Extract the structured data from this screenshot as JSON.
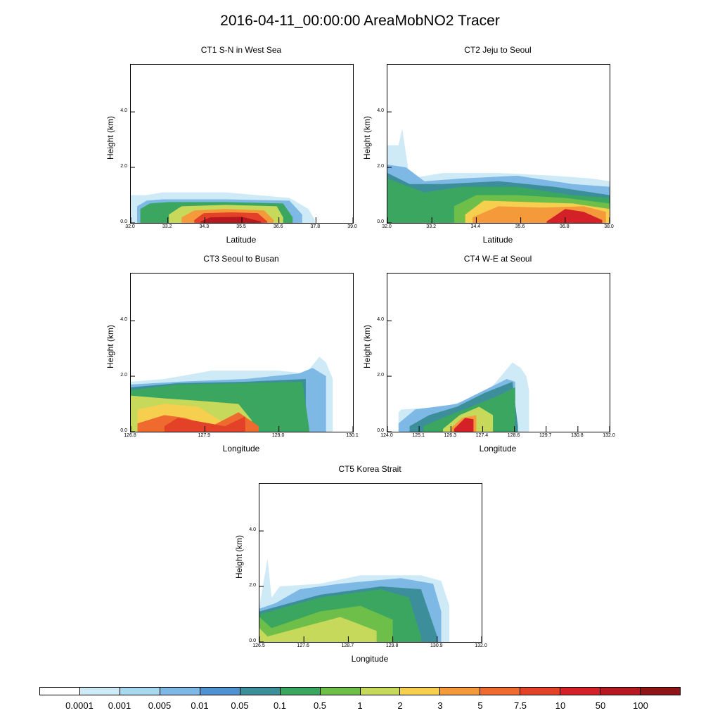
{
  "figure_title": "2016-04-11_00:00:00 AreaMobNO2 Tracer",
  "colorbar": {
    "colors": [
      "#ffffff",
      "#cfeaf7",
      "#a6d8f0",
      "#7db9e4",
      "#4f94d0",
      "#3c8f9a",
      "#3aa660",
      "#6dbf4a",
      "#c6d95a",
      "#f7cf4e",
      "#f59a3a",
      "#ef6a2e",
      "#e34128",
      "#d42027",
      "#b5181e",
      "#8f1416"
    ],
    "labels": [
      "0.0001",
      "0.001",
      "0.005",
      "0.01",
      "0.05",
      "0.1",
      "0.5",
      "1",
      "2",
      "3",
      "5",
      "7.5",
      "10",
      "50",
      "100"
    ]
  },
  "chart_data": [
    {
      "type": "heatmap",
      "title": "CT1 S-N in West Sea",
      "xlabel": "Latitude",
      "ylabel": "Height (km)",
      "xlim": [
        32.0,
        39.0
      ],
      "ylim": [
        0.0,
        5.7
      ],
      "xticks": [
        "32.0",
        "33.2",
        "34.3",
        "35.5",
        "36.6",
        "37.8",
        "39.0"
      ],
      "yticks": [
        "0.0",
        "2.0",
        "4.0"
      ],
      "layers": [
        {
          "level": 1,
          "x": [
            32.0,
            32.5,
            33.0,
            35.0,
            37.0,
            37.6,
            37.8
          ],
          "top": [
            1.0,
            1.0,
            1.1,
            1.1,
            0.9,
            0.5,
            0.1
          ]
        },
        {
          "level": 3,
          "x": [
            32.2,
            32.5,
            33.0,
            35.0,
            37.0,
            37.4
          ],
          "top": [
            0.6,
            0.8,
            0.85,
            0.85,
            0.8,
            0.3
          ]
        },
        {
          "level": 6,
          "x": [
            32.3,
            32.6,
            33.2,
            35.0,
            36.8,
            37.1
          ],
          "top": [
            0.5,
            0.7,
            0.75,
            0.75,
            0.7,
            0.2
          ]
        },
        {
          "level": 8,
          "x": [
            33.2,
            33.6,
            35.0,
            36.6,
            36.8
          ],
          "top": [
            0.3,
            0.6,
            0.65,
            0.6,
            0.2
          ]
        },
        {
          "level": 10,
          "x": [
            33.6,
            34.0,
            35.0,
            36.2,
            36.5
          ],
          "top": [
            0.2,
            0.45,
            0.5,
            0.45,
            0.1
          ]
        },
        {
          "level": 12,
          "x": [
            34.0,
            34.3,
            35.2,
            36.0,
            36.3
          ],
          "top": [
            0.1,
            0.35,
            0.38,
            0.35,
            0.05
          ]
        },
        {
          "level": 14,
          "x": [
            34.2,
            34.5,
            35.5,
            36.1
          ],
          "top": [
            0.05,
            0.2,
            0.22,
            0.05
          ]
        }
      ]
    },
    {
      "type": "heatmap",
      "title": "CT2 Jeju to Seoul",
      "xlabel": "Latitude",
      "ylabel": "Height (km)",
      "xlim": [
        32.0,
        38.0
      ],
      "ylim": [
        0.0,
        5.7
      ],
      "xticks": [
        "32.0",
        "33.2",
        "34.4",
        "35.6",
        "36.8",
        "38.0"
      ],
      "yticks": [
        "0.0",
        "2.0",
        "4.0"
      ],
      "layers": [
        {
          "level": 1,
          "x": [
            32.0,
            32.3,
            32.4,
            32.6,
            33.5,
            35.0,
            36.5,
            37.5,
            38.0
          ],
          "top": [
            2.8,
            2.8,
            3.4,
            1.6,
            1.8,
            1.8,
            1.7,
            1.6,
            1.5
          ]
        },
        {
          "level": 3,
          "x": [
            32.0,
            32.5,
            33.0,
            34.0,
            35.5,
            37.0,
            38.0
          ],
          "top": [
            2.1,
            2.0,
            1.5,
            1.6,
            1.7,
            1.4,
            1.3
          ]
        },
        {
          "level": 5,
          "x": [
            32.0,
            32.6,
            33.5,
            35.0,
            36.5,
            38.0
          ],
          "top": [
            1.8,
            1.4,
            1.4,
            1.5,
            1.3,
            1.0
          ]
        },
        {
          "level": 6,
          "x": [
            32.0,
            33.0,
            34.0,
            35.5,
            37.0,
            38.0
          ],
          "top": [
            1.6,
            1.1,
            1.3,
            1.3,
            1.0,
            0.9
          ]
        },
        {
          "level": 7,
          "x": [
            33.8,
            34.4,
            35.5,
            36.8,
            38.0
          ],
          "top": [
            0.6,
            1.0,
            1.0,
            0.9,
            0.7
          ]
        },
        {
          "level": 9,
          "x": [
            34.1,
            34.6,
            35.8,
            37.0,
            38.0
          ],
          "top": [
            0.3,
            0.8,
            0.75,
            0.7,
            0.5
          ]
        },
        {
          "level": 10,
          "x": [
            34.3,
            35.0,
            36.2,
            37.3,
            37.9
          ],
          "top": [
            0.2,
            0.6,
            0.55,
            0.6,
            0.4
          ]
        },
        {
          "level": 13,
          "x": [
            36.3,
            36.8,
            37.3,
            37.8
          ],
          "top": [
            0.05,
            0.5,
            0.4,
            0.1
          ]
        }
      ]
    },
    {
      "type": "heatmap",
      "title": "CT3 Seoul to Busan",
      "xlabel": "Longitude",
      "ylabel": "Height (km)",
      "xlim": [
        126.8,
        130.1
      ],
      "ylim": [
        0.0,
        5.7
      ],
      "xticks": [
        "126.8",
        "127.9",
        "129.0",
        "130.1"
      ],
      "yticks": [
        "0.0",
        "2.0",
        "4.0"
      ],
      "layers": [
        {
          "level": 1,
          "x": [
            126.8,
            127.3,
            128.0,
            129.0,
            129.4,
            129.6,
            129.7,
            129.8
          ],
          "top": [
            1.8,
            1.9,
            2.2,
            2.2,
            2.1,
            2.7,
            2.5,
            1.9
          ]
        },
        {
          "level": 3,
          "x": [
            126.8,
            127.5,
            128.5,
            129.3,
            129.5,
            129.7
          ],
          "top": [
            1.7,
            1.8,
            1.9,
            2.1,
            2.3,
            2.0
          ]
        },
        {
          "level": 5,
          "x": [
            126.8,
            127.5,
            128.5,
            129.4
          ],
          "top": [
            1.6,
            1.75,
            1.8,
            1.9
          ]
        },
        {
          "level": 6,
          "x": [
            126.8,
            127.5,
            128.5,
            129.35,
            129.45
          ],
          "top": [
            1.5,
            1.7,
            1.75,
            1.8,
            0.1
          ]
        },
        {
          "level": 8,
          "x": [
            126.8,
            127.3,
            127.9,
            128.4,
            128.6
          ],
          "top": [
            1.3,
            1.2,
            1.1,
            1.0,
            0.4
          ]
        },
        {
          "level": 9,
          "x": [
            126.9,
            127.3,
            127.8,
            128.2
          ],
          "top": [
            0.8,
            1.0,
            0.9,
            0.3
          ]
        },
        {
          "level": 11,
          "x": [
            126.9,
            127.3,
            127.6,
            128.0,
            128.4,
            128.7
          ],
          "top": [
            0.3,
            0.6,
            0.5,
            0.2,
            0.7,
            0.2
          ]
        },
        {
          "level": 12,
          "x": [
            127.3,
            127.5,
            128.2,
            128.5
          ],
          "top": [
            0.2,
            0.5,
            0.2,
            0.55
          ]
        }
      ]
    },
    {
      "type": "heatmap",
      "title": "CT4 W-E at Seoul",
      "xlabel": "Longitude",
      "ylabel": "Height (km)",
      "xlim": [
        124.0,
        132.0
      ],
      "ylim": [
        0.0,
        5.7
      ],
      "xticks": [
        "124.0",
        "125.1",
        "126.3",
        "127.4",
        "128.6",
        "129.7",
        "130.8",
        "132.0"
      ],
      "yticks": [
        "0.0",
        "2.0",
        "4.0"
      ],
      "layers": [
        {
          "level": 1,
          "x": [
            124.4,
            124.5,
            126.0,
            127.5,
            128.5,
            128.8,
            129.0,
            129.1
          ],
          "top": [
            0.7,
            0.8,
            0.9,
            1.3,
            2.5,
            2.3,
            2.0,
            1.5
          ]
        },
        {
          "level": 3,
          "x": [
            124.4,
            125.0,
            126.5,
            127.5,
            128.3,
            128.6
          ],
          "top": [
            0.3,
            0.8,
            1.0,
            1.5,
            1.9,
            1.8
          ]
        },
        {
          "level": 5,
          "x": [
            124.8,
            125.5,
            126.5,
            127.5,
            128.5,
            128.7
          ],
          "top": [
            0.2,
            0.6,
            0.9,
            1.4,
            1.8,
            0.2
          ]
        },
        {
          "level": 6,
          "x": [
            125.3,
            126.0,
            127.0,
            128.0,
            128.6
          ],
          "top": [
            0.2,
            0.5,
            0.9,
            1.3,
            1.6
          ]
        },
        {
          "level": 8,
          "x": [
            126.0,
            126.6,
            127.3,
            127.8
          ],
          "top": [
            0.1,
            0.6,
            0.9,
            0.6
          ]
        },
        {
          "level": 10,
          "x": [
            126.3,
            126.7,
            127.2
          ],
          "top": [
            0.15,
            0.5,
            0.6
          ]
        },
        {
          "level": 13,
          "x": [
            126.4,
            126.8,
            127.1
          ],
          "top": [
            0.1,
            0.5,
            0.45
          ]
        }
      ]
    },
    {
      "type": "heatmap",
      "title": "CT5 Korea Strait",
      "xlabel": "Longitude",
      "ylabel": "Height (km)",
      "xlim": [
        126.5,
        132.0
      ],
      "ylim": [
        0.0,
        5.7
      ],
      "xticks": [
        "126.5",
        "127.6",
        "128.7",
        "129.8",
        "130.9",
        "132.0"
      ],
      "yticks": [
        "0.0",
        "2.0",
        "4.0"
      ],
      "layers": [
        {
          "level": 1,
          "x": [
            126.5,
            126.7,
            126.8,
            127.0,
            128.0,
            129.0,
            130.5,
            131.0,
            131.2
          ],
          "top": [
            1.3,
            3.0,
            1.6,
            2.0,
            2.1,
            2.4,
            2.4,
            2.2,
            1.3
          ]
        },
        {
          "level": 3,
          "x": [
            126.5,
            126.9,
            127.5,
            128.5,
            130.0,
            130.8,
            131.0
          ],
          "top": [
            1.2,
            1.4,
            1.9,
            2.1,
            2.3,
            2.1,
            1.1
          ]
        },
        {
          "level": 5,
          "x": [
            126.5,
            127.0,
            128.0,
            129.5,
            130.5,
            130.9
          ],
          "top": [
            1.1,
            1.3,
            1.7,
            2.0,
            1.9,
            0.2
          ]
        },
        {
          "level": 6,
          "x": [
            126.5,
            127.0,
            128.0,
            129.5,
            130.2,
            130.5
          ],
          "top": [
            1.0,
            1.2,
            1.6,
            1.9,
            1.6,
            0.2
          ]
        },
        {
          "level": 7,
          "x": [
            126.5,
            126.8,
            128.0,
            129.0,
            129.8
          ],
          "top": [
            0.9,
            0.5,
            1.1,
            1.3,
            0.8
          ]
        },
        {
          "level": 8,
          "x": [
            126.5,
            126.7,
            128.5,
            129.4
          ],
          "top": [
            0.5,
            0.2,
            0.9,
            0.4
          ]
        }
      ]
    }
  ]
}
